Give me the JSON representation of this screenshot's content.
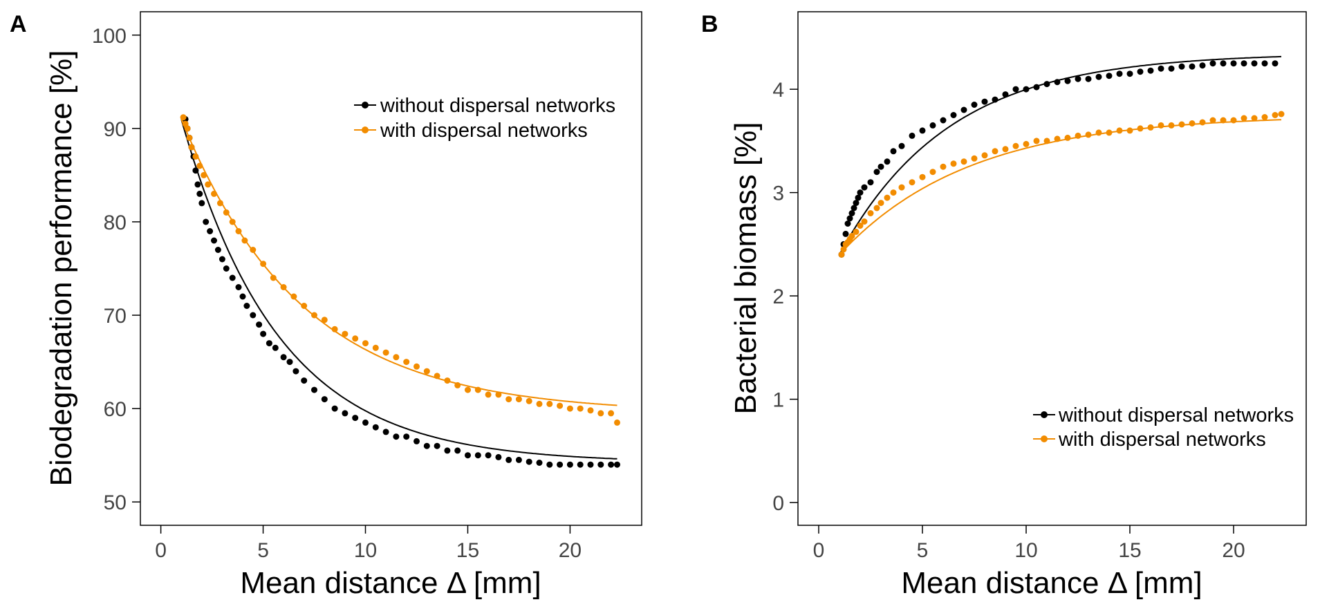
{
  "chart_data": [
    {
      "panel_label": "A",
      "type": "scatter",
      "title": "",
      "xlabel": "Mean distance Δ [mm]",
      "ylabel": "Biodegradation performance [%]",
      "xlim": [
        -1,
        23.5
      ],
      "ylim": [
        47.5,
        102.5
      ],
      "xticks": [
        0,
        5,
        10,
        15,
        20
      ],
      "xtick_labels": [
        "0",
        "5",
        "10",
        "15",
        "20"
      ],
      "yticks": [
        50,
        60,
        70,
        80,
        90,
        100
      ],
      "ytick_labels": [
        "50",
        "60",
        "70",
        "80",
        "90",
        "100"
      ],
      "legend_position": "top-right",
      "series": [
        {
          "name": "without dispersal networks",
          "color": "#000000",
          "fit": {
            "model": "exponential",
            "asymptote": 54.2,
            "amplitude": 36.8,
            "rate": 0.21
          },
          "points": [
            [
              1.2,
              91
            ],
            [
              1.3,
              90
            ],
            [
              1.4,
              89
            ],
            [
              1.5,
              88
            ],
            [
              1.6,
              87
            ],
            [
              1.7,
              85.5
            ],
            [
              1.8,
              84
            ],
            [
              1.9,
              83
            ],
            [
              2,
              82
            ],
            [
              2.2,
              80
            ],
            [
              2.4,
              79
            ],
            [
              2.6,
              78
            ],
            [
              2.8,
              77
            ],
            [
              3,
              76
            ],
            [
              3.2,
              75
            ],
            [
              3.5,
              74
            ],
            [
              3.8,
              73
            ],
            [
              4,
              72
            ],
            [
              4.2,
              71
            ],
            [
              4.5,
              70
            ],
            [
              4.8,
              69
            ],
            [
              5,
              68
            ],
            [
              5.3,
              67
            ],
            [
              5.6,
              66.5
            ],
            [
              6,
              65.5
            ],
            [
              6.3,
              65
            ],
            [
              6.6,
              64
            ],
            [
              7,
              63
            ],
            [
              7.5,
              62
            ],
            [
              8,
              61
            ],
            [
              8.5,
              60
            ],
            [
              9,
              59.5
            ],
            [
              9.5,
              59
            ],
            [
              10,
              58.5
            ],
            [
              10.5,
              58
            ],
            [
              11,
              57.5
            ],
            [
              11.5,
              57
            ],
            [
              12,
              57
            ],
            [
              12.5,
              56.5
            ],
            [
              13,
              56
            ],
            [
              13.5,
              56
            ],
            [
              14,
              55.5
            ],
            [
              14.5,
              55.5
            ],
            [
              15,
              55
            ],
            [
              15.5,
              55
            ],
            [
              16,
              55
            ],
            [
              16.5,
              54.8
            ],
            [
              17,
              54.5
            ],
            [
              17.5,
              54.5
            ],
            [
              18,
              54.3
            ],
            [
              18.5,
              54.2
            ],
            [
              19,
              54
            ],
            [
              19.5,
              54
            ],
            [
              20,
              54
            ],
            [
              20.5,
              54
            ],
            [
              21,
              54
            ],
            [
              21.5,
              54
            ],
            [
              22,
              54
            ],
            [
              22.3,
              54
            ]
          ]
        },
        {
          "name": "with dispersal networks",
          "color": "#f28c00",
          "fit": {
            "model": "exponential",
            "asymptote": 59.5,
            "amplitude": 31.5,
            "rate": 0.17
          },
          "points": [
            [
              1.1,
              91.2
            ],
            [
              1.2,
              90.5
            ],
            [
              1.3,
              90
            ],
            [
              1.4,
              89
            ],
            [
              1.5,
              88
            ],
            [
              1.7,
              87
            ],
            [
              1.9,
              86
            ],
            [
              2.1,
              85
            ],
            [
              2.3,
              84
            ],
            [
              2.6,
              83
            ],
            [
              2.9,
              82
            ],
            [
              3.2,
              81
            ],
            [
              3.5,
              80
            ],
            [
              3.8,
              79
            ],
            [
              4.1,
              78
            ],
            [
              4.5,
              77
            ],
            [
              5,
              75.5
            ],
            [
              5.5,
              74
            ],
            [
              6,
              73
            ],
            [
              6.5,
              72
            ],
            [
              7,
              71
            ],
            [
              7.5,
              70
            ],
            [
              8,
              69.5
            ],
            [
              8.5,
              68.5
            ],
            [
              9,
              68
            ],
            [
              9.5,
              67.5
            ],
            [
              10,
              67
            ],
            [
              10.5,
              66.5
            ],
            [
              11,
              66
            ],
            [
              11.5,
              65.5
            ],
            [
              12,
              65
            ],
            [
              12.5,
              64.5
            ],
            [
              13,
              64
            ],
            [
              13.5,
              63.5
            ],
            [
              14,
              63
            ],
            [
              14.5,
              62.5
            ],
            [
              15,
              62
            ],
            [
              15.5,
              62
            ],
            [
              16,
              61.5
            ],
            [
              16.5,
              61.5
            ],
            [
              17,
              61
            ],
            [
              17.5,
              61
            ],
            [
              18,
              60.8
            ],
            [
              18.5,
              60.5
            ],
            [
              19,
              60.5
            ],
            [
              19.5,
              60.3
            ],
            [
              20,
              60
            ],
            [
              20.5,
              60
            ],
            [
              21,
              59.8
            ],
            [
              21.5,
              59.5
            ],
            [
              22,
              59.5
            ],
            [
              22.3,
              58.5
            ]
          ]
        }
      ]
    },
    {
      "panel_label": "B",
      "type": "scatter",
      "title": "",
      "xlabel": "Mean distance Δ [mm]",
      "ylabel": "Bacterial biomass [%]",
      "xlim": [
        -1,
        23.5
      ],
      "ylim": [
        -0.22,
        4.75
      ],
      "xticks": [
        0,
        5,
        10,
        15,
        20
      ],
      "xtick_labels": [
        "0",
        "5",
        "10",
        "15",
        "20"
      ],
      "yticks": [
        0,
        1,
        2,
        3,
        4
      ],
      "ytick_labels": [
        "0",
        "1",
        "2",
        "3",
        "4"
      ],
      "legend_position": "bottom-right",
      "series": [
        {
          "name": "without dispersal networks",
          "color": "#000000",
          "fit": {
            "model": "saturating",
            "asymptote": 4.35,
            "x0": 1.0,
            "y0": 2.4,
            "rate": 0.19
          },
          "points": [
            [
              1.1,
              2.4
            ],
            [
              1.2,
              2.5
            ],
            [
              1.3,
              2.6
            ],
            [
              1.4,
              2.7
            ],
            [
              1.5,
              2.75
            ],
            [
              1.6,
              2.8
            ],
            [
              1.7,
              2.85
            ],
            [
              1.8,
              2.9
            ],
            [
              1.9,
              2.95
            ],
            [
              2,
              3
            ],
            [
              2.2,
              3.05
            ],
            [
              2.5,
              3.1
            ],
            [
              2.8,
              3.2
            ],
            [
              3,
              3.25
            ],
            [
              3.3,
              3.3
            ],
            [
              3.6,
              3.4
            ],
            [
              4,
              3.45
            ],
            [
              4.5,
              3.55
            ],
            [
              5,
              3.6
            ],
            [
              5.5,
              3.65
            ],
            [
              6,
              3.7
            ],
            [
              6.5,
              3.75
            ],
            [
              7,
              3.8
            ],
            [
              7.5,
              3.85
            ],
            [
              8,
              3.88
            ],
            [
              8.5,
              3.9
            ],
            [
              9,
              3.95
            ],
            [
              9.5,
              4
            ],
            [
              10,
              4
            ],
            [
              10.5,
              4.02
            ],
            [
              11,
              4.05
            ],
            [
              11.5,
              4.07
            ],
            [
              12,
              4.08
            ],
            [
              12.5,
              4.1
            ],
            [
              13,
              4.1
            ],
            [
              13.5,
              4.12
            ],
            [
              14,
              4.13
            ],
            [
              14.5,
              4.15
            ],
            [
              15,
              4.15
            ],
            [
              15.5,
              4.17
            ],
            [
              16,
              4.18
            ],
            [
              16.5,
              4.2
            ],
            [
              17,
              4.2
            ],
            [
              17.5,
              4.22
            ],
            [
              18,
              4.22
            ],
            [
              18.5,
              4.23
            ],
            [
              19,
              4.25
            ],
            [
              19.5,
              4.25
            ],
            [
              20,
              4.25
            ],
            [
              20.5,
              4.25
            ],
            [
              21,
              4.25
            ],
            [
              21.5,
              4.25
            ],
            [
              22,
              4.25
            ]
          ]
        },
        {
          "name": "with dispersal networks",
          "color": "#f28c00",
          "fit": {
            "model": "saturating",
            "asymptote": 3.75,
            "x0": 1.0,
            "y0": 2.4,
            "rate": 0.16
          },
          "points": [
            [
              1.1,
              2.4
            ],
            [
              1.2,
              2.45
            ],
            [
              1.3,
              2.5
            ],
            [
              1.4,
              2.52
            ],
            [
              1.5,
              2.55
            ],
            [
              1.6,
              2.58
            ],
            [
              1.8,
              2.62
            ],
            [
              2,
              2.68
            ],
            [
              2.2,
              2.72
            ],
            [
              2.5,
              2.8
            ],
            [
              2.8,
              2.85
            ],
            [
              3,
              2.9
            ],
            [
              3.3,
              2.95
            ],
            [
              3.6,
              3
            ],
            [
              4,
              3.05
            ],
            [
              4.5,
              3.1
            ],
            [
              5,
              3.15
            ],
            [
              5.5,
              3.2
            ],
            [
              6,
              3.25
            ],
            [
              6.5,
              3.28
            ],
            [
              7,
              3.3
            ],
            [
              7.5,
              3.33
            ],
            [
              8,
              3.36
            ],
            [
              8.5,
              3.4
            ],
            [
              9,
              3.42
            ],
            [
              9.5,
              3.45
            ],
            [
              10,
              3.47
            ],
            [
              10.5,
              3.5
            ],
            [
              11,
              3.5
            ],
            [
              11.5,
              3.52
            ],
            [
              12,
              3.53
            ],
            [
              12.5,
              3.55
            ],
            [
              13,
              3.56
            ],
            [
              13.5,
              3.58
            ],
            [
              14,
              3.58
            ],
            [
              14.5,
              3.6
            ],
            [
              15,
              3.6
            ],
            [
              15.5,
              3.62
            ],
            [
              16,
              3.63
            ],
            [
              16.5,
              3.65
            ],
            [
              17,
              3.65
            ],
            [
              17.5,
              3.66
            ],
            [
              18,
              3.67
            ],
            [
              18.5,
              3.68
            ],
            [
              19,
              3.7
            ],
            [
              19.5,
              3.7
            ],
            [
              20,
              3.7
            ],
            [
              20.5,
              3.72
            ],
            [
              21,
              3.72
            ],
            [
              21.5,
              3.73
            ],
            [
              22,
              3.75
            ],
            [
              22.3,
              3.76
            ]
          ]
        }
      ]
    }
  ]
}
